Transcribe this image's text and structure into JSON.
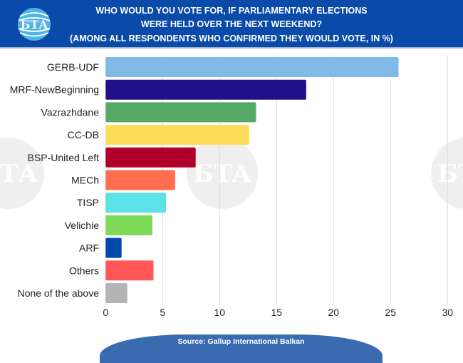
{
  "header": {
    "logo_text": "БТА",
    "title_line1": "WHO WOULD YOU VOTE FOR, IF PARLIAMENTARY ELECTIONS",
    "title_line2": "WERE HELD OVER THE NEXT WEEKEND?",
    "subtitle": "(AMONG ALL RESPONDENTS WHO CONFIRMED THEY WOULD VOTE, IN %)"
  },
  "footer": {
    "source": "Source: Gallup International Balkan"
  },
  "watermark": "БТА",
  "chart_data": {
    "type": "bar",
    "orientation": "horizontal",
    "title": "WHO WOULD YOU VOTE FOR, IF PARLIAMENTARY ELECTIONS WERE HELD OVER THE NEXT WEEKEND?",
    "subtitle": "(AMONG ALL RESPONDENTS WHO CONFIRMED THEY WOULD VOTE, IN %)",
    "categories": [
      "GERB-UDF",
      "MRF-NewBeginning",
      "Vazrazhdane",
      "CC-DB",
      "BSP-United Left",
      "MECh",
      "TISP",
      "Velichie",
      "ARF",
      "Others",
      "None of the above"
    ],
    "values": [
      25.7,
      17.6,
      13.2,
      12.6,
      7.9,
      6.1,
      5.3,
      4.1,
      1.4,
      4.2,
      1.9
    ],
    "colors": [
      "#7fb9e6",
      "#21108a",
      "#56a866",
      "#ffdc5a",
      "#b0002a",
      "#ff6e4e",
      "#5ce1e6",
      "#7ed957",
      "#004aad",
      "#ff5757",
      "#b4b4b4"
    ],
    "xlim": [
      0,
      30
    ],
    "xticks": [
      0,
      5,
      10,
      15,
      20,
      25,
      30
    ],
    "grid": true,
    "legend": "none"
  }
}
